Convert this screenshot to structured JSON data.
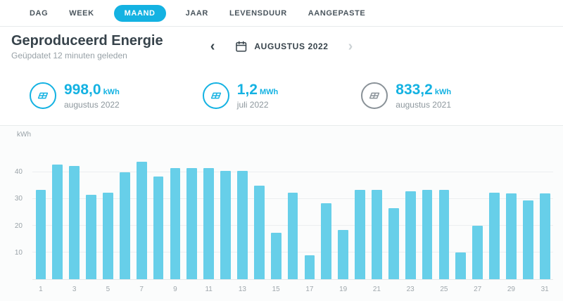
{
  "colors": {
    "accent": "#14b2e2"
  },
  "tabs": [
    {
      "label": "DAG",
      "active": false
    },
    {
      "label": "WEEK",
      "active": false
    },
    {
      "label": "MAAND",
      "active": true
    },
    {
      "label": "JAAR",
      "active": false
    },
    {
      "label": "LEVENSDUUR",
      "active": false
    },
    {
      "label": "AANGEPASTE",
      "active": false
    }
  ],
  "header": {
    "title": "Geproduceerd Energie",
    "subtitle": "Geüpdatet 12 minuten geleden"
  },
  "date_nav": {
    "label": "AUGUSTUS 2022"
  },
  "stats": [
    {
      "value": "998,0",
      "unit": "kWh",
      "period": "augustus 2022",
      "icon": "solar-panel-icon",
      "icon_color": "#14b2e2"
    },
    {
      "value": "1,2",
      "unit": "MWh",
      "period": "juli 2022",
      "icon": "solar-panel-icon",
      "icon_color": "#14b2e2"
    },
    {
      "value": "833,2",
      "unit": "kWh",
      "period": "augustus 2021",
      "icon": "solar-panel-icon",
      "icon_color": "#8a9298"
    }
  ],
  "chart_data": {
    "type": "bar",
    "title": "Geproduceerd Energie - augustus 2022",
    "ylabel": "kWh",
    "xlabel": "",
    "x": [
      1,
      2,
      3,
      4,
      5,
      6,
      7,
      8,
      9,
      10,
      11,
      12,
      13,
      14,
      15,
      16,
      17,
      18,
      19,
      20,
      21,
      22,
      23,
      24,
      25,
      26,
      27,
      28,
      29,
      30,
      31
    ],
    "values": [
      33.5,
      43,
      42.5,
      31.5,
      32.5,
      40,
      44,
      38.5,
      41.5,
      41.5,
      41.5,
      40.5,
      40.5,
      35,
      17.5,
      32.5,
      9,
      28.5,
      18.5,
      33.5,
      33.5,
      26.5,
      33,
      33.5,
      33.5,
      10,
      20,
      32.5,
      32,
      29.5,
      32
    ],
    "yticks": [
      10,
      20,
      30,
      40
    ],
    "ylim": [
      0,
      50
    ],
    "grid": true,
    "bar_color": "#67cfe9",
    "xtick_labels_shown": "odd-days-only"
  }
}
